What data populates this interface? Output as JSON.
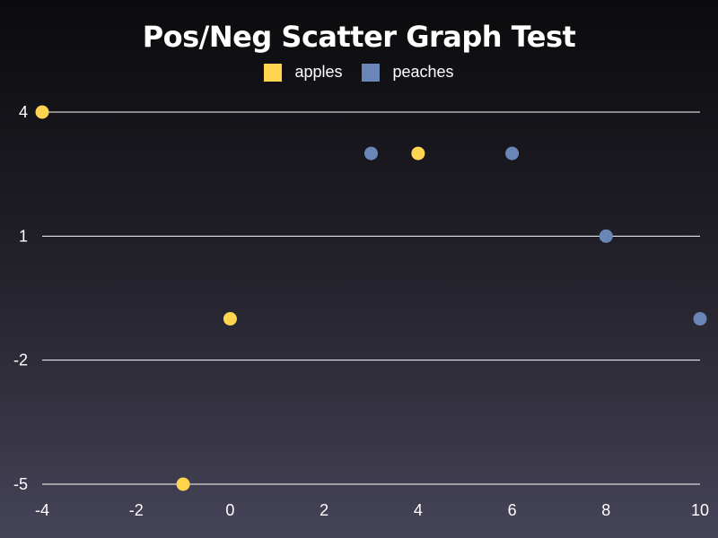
{
  "chart_data": {
    "type": "scatter",
    "title": "Pos/Neg Scatter Graph Test",
    "xlabel": "",
    "ylabel": "",
    "xlim": [
      -4,
      10
    ],
    "ylim": [
      -5,
      4
    ],
    "x_ticks": [
      "-4",
      "-2",
      "0",
      "2",
      "4",
      "6",
      "8",
      "10"
    ],
    "x_tick_values": [
      -4,
      -2,
      0,
      2,
      4,
      6,
      8,
      10
    ],
    "y_ticks": [
      "4",
      "1",
      "-2",
      "-5"
    ],
    "y_tick_values": [
      4,
      1,
      -2,
      -5
    ],
    "grid": "horizontal",
    "legend_position": "top-center",
    "series": [
      {
        "name": "apples",
        "color": "#ffd54f",
        "points": [
          {
            "x": -4,
            "y": 4
          },
          {
            "x": 4,
            "y": 3
          },
          {
            "x": 0,
            "y": -1
          },
          {
            "x": -1,
            "y": -5
          }
        ]
      },
      {
        "name": "peaches",
        "color": "#6a86b6",
        "points": [
          {
            "x": 3,
            "y": 3
          },
          {
            "x": 6,
            "y": 3
          },
          {
            "x": 8,
            "y": 1
          },
          {
            "x": 10,
            "y": -1
          }
        ]
      }
    ]
  }
}
